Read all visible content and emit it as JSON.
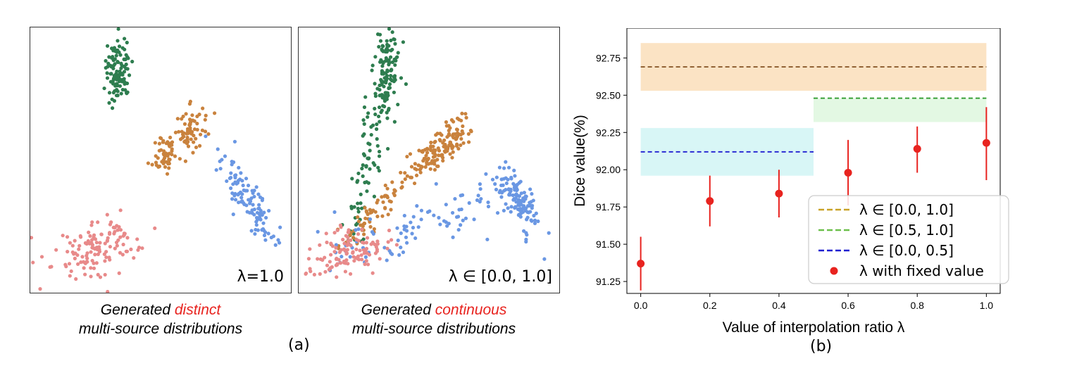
{
  "panel_a": {
    "left_panel": {
      "label": "λ=1.0",
      "caption_pre": "Generated ",
      "caption_hl": "distinct",
      "caption_line2": "multi-source distributions"
    },
    "right_panel": {
      "label": "λ ∈ [0.0, 1.0]",
      "caption_pre": "Generated ",
      "caption_hl": "continuous",
      "caption_line2": "multi-source distributions"
    },
    "sublabel": "(a)",
    "colors": {
      "green": "#2e7d4f",
      "orange": "#c9823d",
      "blue": "#6a97e3",
      "pink": "#e88a8a",
      "highlight": "#e8231f"
    }
  },
  "sublabel_b": "(b)",
  "chart_data": {
    "type": "scatter",
    "xlabel": "Value of interpolation ratio λ",
    "ylabel": "Dice value(%)",
    "xlim": [
      -0.04,
      1.04
    ],
    "ylim": [
      91.17,
      92.95
    ],
    "xticks": [
      0.0,
      0.2,
      0.4,
      0.6,
      0.8,
      1.0
    ],
    "xtick_labels": [
      "0.0",
      "0.2",
      "0.4",
      "0.6",
      "0.8",
      "1.0"
    ],
    "yticks": [
      91.25,
      91.5,
      91.75,
      92.0,
      92.25,
      92.5,
      92.75
    ],
    "ytick_labels": [
      "91.25",
      "91.50",
      "91.75",
      "92.00",
      "92.25",
      "92.50",
      "92.75"
    ],
    "bands": [
      {
        "name": "λ ∈ [0.0, 1.0]",
        "x_range": [
          0.0,
          1.0
        ],
        "value": 92.69,
        "lower": 92.53,
        "upper": 92.85,
        "line_color": "#8b5a2b",
        "fill_color": "#fbe3c4",
        "legend_color": "#c9a227"
      },
      {
        "name": "λ ∈ [0.5, 1.0]",
        "x_range": [
          0.5,
          1.0
        ],
        "value": 92.48,
        "lower": 92.32,
        "upper": 92.48,
        "line_color": "#2e9a2e",
        "fill_color": "#e3f8e3",
        "legend_color": "#6cc04a"
      },
      {
        "name": "λ ∈ [0.0, 0.5]",
        "x_range": [
          0.0,
          0.5
        ],
        "value": 92.12,
        "lower": 91.96,
        "upper": 92.28,
        "line_color": "#1f1fd1",
        "fill_color": "#d8f6f6",
        "legend_color": "#1f1fd1"
      }
    ],
    "series": [
      {
        "name": "λ with fixed value",
        "color": "#e8231f",
        "x": [
          0.0,
          0.2,
          0.4,
          0.6,
          0.8,
          1.0
        ],
        "y": [
          91.37,
          91.79,
          91.84,
          91.98,
          92.14,
          92.18
        ],
        "err_low": [
          91.19,
          91.62,
          91.68,
          91.76,
          91.98,
          91.93
        ],
        "err_high": [
          91.55,
          91.96,
          92.0,
          92.2,
          92.29,
          92.42
        ]
      }
    ],
    "legend_position": "lower-right"
  }
}
